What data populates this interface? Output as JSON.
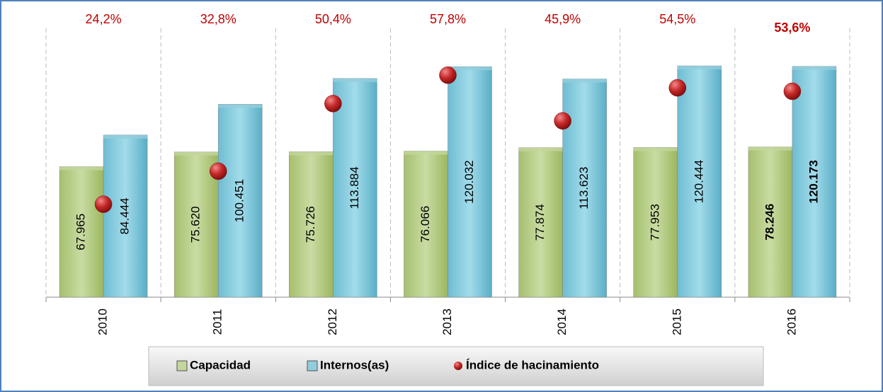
{
  "chart_data": {
    "type": "bar",
    "categories": [
      "2010",
      "2011",
      "2012",
      "2013",
      "2014",
      "2015",
      "2016"
    ],
    "series": [
      {
        "name": "Capacidad",
        "color": "#c3d69b",
        "values": [
          67965,
          75620,
          75726,
          76066,
          77874,
          77953,
          78246
        ],
        "value_labels": [
          "67.965",
          "75.620",
          "75.726",
          "76.066",
          "77.874",
          "77.953",
          "78.246"
        ]
      },
      {
        "name": "Internos(as)",
        "color": "#92cddc",
        "values": [
          84444,
          100451,
          113884,
          120032,
          113623,
          120444,
          120173
        ],
        "value_labels": [
          "84.444",
          "100.451",
          "113.884",
          "120.032",
          "113.623",
          "120.444",
          "120.173"
        ]
      },
      {
        "name": "Índice de hacinamiento",
        "type": "scatter",
        "axis": "y2",
        "color": "#c00000",
        "values": [
          24.2,
          32.8,
          50.4,
          57.8,
          45.9,
          54.5,
          53.6
        ],
        "value_labels": [
          "24,2%",
          "32,8%",
          "50,4%",
          "57,8%",
          "45,9%",
          "54,5%",
          "53,6%"
        ]
      }
    ],
    "ylim": [
      0,
      140000
    ],
    "y2lim": [
      0,
      70
    ],
    "legend": "bottom",
    "bold_last": true
  }
}
